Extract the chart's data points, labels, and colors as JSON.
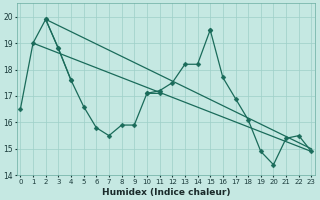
{
  "xlabel": "Humidex (Indice chaleur)",
  "x": [
    0,
    1,
    2,
    3,
    4,
    5,
    6,
    7,
    8,
    9,
    10,
    11,
    12,
    13,
    14,
    15,
    16,
    17,
    18,
    19,
    20,
    21,
    22,
    23
  ],
  "line1": [
    16.5,
    19.0,
    19.9,
    18.8,
    17.6,
    16.6,
    15.8,
    15.5,
    15.9,
    15.9,
    17.1,
    17.1,
    null,
    null,
    null,
    19.5,
    17.7,
    16.9,
    16.1,
    14.9,
    14.4,
    15.4,
    15.5,
    14.9
  ],
  "line2": [
    null,
    null,
    null,
    null,
    null,
    null,
    null,
    null,
    null,
    null,
    17.1,
    17.2,
    17.5,
    18.2,
    18.2,
    19.5,
    null,
    null,
    null,
    null,
    null,
    null,
    null,
    null
  ],
  "line2b": [
    null,
    null,
    19.9,
    18.8,
    17.6,
    null,
    null,
    null,
    null,
    null,
    null,
    null,
    null,
    null,
    null,
    null,
    null,
    null,
    null,
    null,
    null,
    null,
    null,
    null
  ],
  "trend1_x": [
    1,
    23
  ],
  "trend1_y": [
    19.0,
    14.9
  ],
  "trend2_x": [
    2,
    23
  ],
  "trend2_y": [
    19.9,
    15.0
  ],
  "bg_color": "#c5e8e2",
  "grid_color": "#9ecfc8",
  "line_color": "#1a6b5a",
  "ylim": [
    14,
    20.5
  ],
  "yticks": [
    14,
    15,
    16,
    17,
    18,
    19,
    20
  ],
  "xlim": [
    -0.3,
    23.3
  ],
  "markersize": 2.5,
  "linewidth": 0.9
}
